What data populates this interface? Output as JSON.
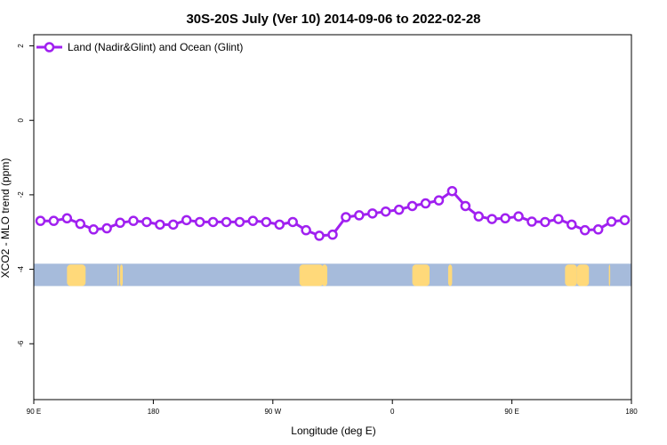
{
  "colors": {
    "series": "#a020f0",
    "land": "#ffd97a",
    "ocean": "#a6bbdb",
    "axis": "#000000"
  },
  "chart_data": {
    "type": "line",
    "title": "30S-20S July (Ver 10)   2014-09-06 to 2022-02-28",
    "xlabel": "Longitude (deg E)",
    "ylabel": "XCO2 - MLO trend (ppm)",
    "xlim": [
      90,
      540
    ],
    "ylim": [
      -7.5,
      2.3
    ],
    "x_ticks": [
      {
        "value": 90,
        "label": "90 E"
      },
      {
        "value": 180,
        "label": "180"
      },
      {
        "value": 270,
        "label": "90 W"
      },
      {
        "value": 360,
        "label": "0"
      },
      {
        "value": 450,
        "label": "90 E"
      },
      {
        "value": 540,
        "label": "180"
      }
    ],
    "y_ticks": [
      {
        "value": 2,
        "label": "2"
      },
      {
        "value": 0,
        "label": "0"
      },
      {
        "value": -2,
        "label": "-2"
      },
      {
        "value": -4,
        "label": "-4"
      },
      {
        "value": -6,
        "label": "-6"
      }
    ],
    "legend": {
      "position": "top-left"
    },
    "grid": false,
    "series": [
      {
        "name": "Land (Nadir&Glint) and Ocean (Glint)",
        "x": [
          95,
          105,
          115,
          125,
          135,
          145,
          155,
          165,
          175,
          185,
          195,
          205,
          215,
          225,
          235,
          245,
          255,
          265,
          275,
          285,
          295,
          305,
          315,
          325,
          335,
          345,
          355,
          365,
          375,
          385,
          395,
          405,
          415,
          425,
          435,
          445,
          455,
          465,
          475,
          485,
          495,
          505,
          515,
          525,
          535
        ],
        "y": [
          -2.7,
          -2.7,
          -2.63,
          -2.78,
          -2.93,
          -2.9,
          -2.75,
          -2.7,
          -2.73,
          -2.8,
          -2.8,
          -2.68,
          -2.73,
          -2.73,
          -2.73,
          -2.73,
          -2.7,
          -2.73,
          -2.8,
          -2.73,
          -2.95,
          -3.1,
          -3.07,
          -2.6,
          -2.55,
          -2.5,
          -2.45,
          -2.4,
          -2.3,
          -2.23,
          -2.15,
          -1.9,
          -2.3,
          -2.58,
          -2.65,
          -2.63,
          -2.58,
          -2.72,
          -2.73,
          -2.65,
          -2.8,
          -2.95,
          -2.93,
          -2.72,
          -2.68
        ]
      }
    ],
    "map_strip": {
      "y_range": [
        -4.45,
        -3.85
      ],
      "land_segments": [
        [
          115,
          129
        ],
        [
          153,
          154
        ],
        [
          155,
          157
        ],
        [
          290,
          308
        ],
        [
          307,
          311
        ],
        [
          375,
          388
        ],
        [
          402,
          405
        ],
        [
          490,
          499
        ],
        [
          499,
          508
        ],
        [
          523,
          524
        ]
      ]
    }
  }
}
